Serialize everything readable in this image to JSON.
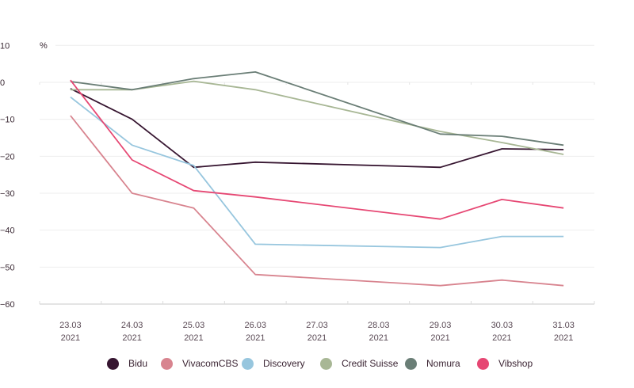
{
  "chart_data": {
    "type": "line",
    "title": "",
    "xlabel": "",
    "ylabel": "%",
    "ylim": [
      -60,
      10
    ],
    "yticks": [
      10,
      0,
      -10,
      -20,
      -30,
      -40,
      -50,
      -60
    ],
    "ytick_labels": [
      "10",
      "0",
      "−10",
      "−20",
      "−30",
      "−40",
      "−50",
      "−60"
    ],
    "grid": true,
    "legend_position": "bottom",
    "categories": [
      [
        "23.03",
        "2021"
      ],
      [
        "24.03",
        "2021"
      ],
      [
        "25.03",
        "2021"
      ],
      [
        "26.03",
        "2021"
      ],
      [
        "27.03",
        "2021"
      ],
      [
        "28.03",
        "2021"
      ],
      [
        "29.03",
        "2021"
      ],
      [
        "30.03",
        "2021"
      ],
      [
        "31.03",
        "2021"
      ]
    ],
    "series": [
      {
        "name": "Bidu",
        "color": "#361530",
        "values": [
          -1.7,
          -10,
          -23,
          -21.6,
          null,
          null,
          -23,
          -18,
          -18.2
        ]
      },
      {
        "name": "VivacomCBS",
        "color": "#d8848f",
        "values": [
          -9,
          -30,
          -34,
          -52,
          null,
          null,
          -55,
          -53.5,
          -55
        ]
      },
      {
        "name": "Discovery",
        "color": "#97c6de",
        "values": [
          -4,
          -17,
          -22.5,
          -43.8,
          null,
          null,
          -44.7,
          -41.7,
          -41.7
        ]
      },
      {
        "name": "Credit Suisse",
        "color": "#a8b795",
        "values": [
          -2,
          -2,
          0.3,
          -2,
          null,
          null,
          -13.3,
          -16.3,
          -19.5
        ]
      },
      {
        "name": "Nomura",
        "color": "#6a7e76",
        "values": [
          0.2,
          -2,
          1,
          2.8,
          null,
          null,
          -14,
          -14.6,
          -17
        ]
      },
      {
        "name": "Vibshop",
        "color": "#e64773",
        "values": [
          0.6,
          -21,
          -29.3,
          -31,
          null,
          null,
          -37,
          -31.7,
          -34
        ]
      }
    ]
  }
}
